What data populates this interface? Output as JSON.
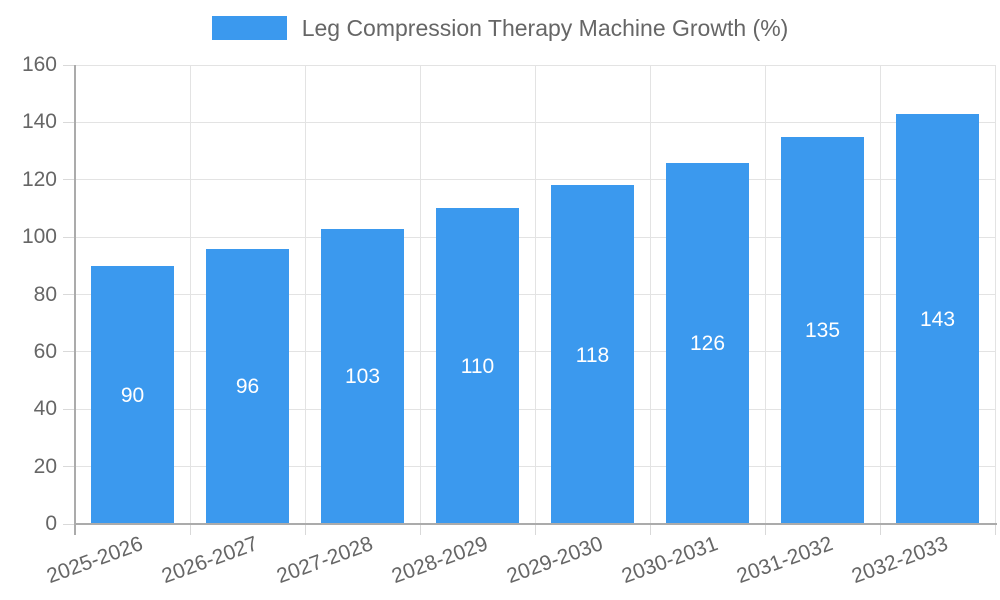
{
  "legend": {
    "label": "Leg Compression Therapy Machine Growth (%)"
  },
  "chart_data": {
    "type": "bar",
    "title": "Leg Compression Therapy Machine Growth (%)",
    "categories": [
      "2025-2026",
      "2026-2027",
      "2027-2028",
      "2028-2029",
      "2029-2030",
      "2030-2031",
      "2031-2032",
      "2032-2033"
    ],
    "values": [
      90,
      96,
      103,
      110,
      118,
      126,
      135,
      143
    ],
    "value_labels": [
      "90",
      "96",
      "103",
      "110",
      "118",
      "126",
      "135",
      "143"
    ],
    "ytick_labels": [
      "0",
      "20",
      "40",
      "60",
      "80",
      "100",
      "120",
      "140",
      "160"
    ],
    "xlabel": "",
    "ylabel": "",
    "ylim": [
      0,
      160
    ],
    "ytick_step": 20,
    "grid": true,
    "legend_position": "top",
    "x_label_rotation_deg": -20,
    "colors": {
      "bar": "#3b99ee",
      "value_label": "#ffffff",
      "axis_text": "#666666",
      "grid_line": "#e3e3e3",
      "axis_line": "#ababab",
      "tick_line": "#d9d9d9"
    }
  }
}
